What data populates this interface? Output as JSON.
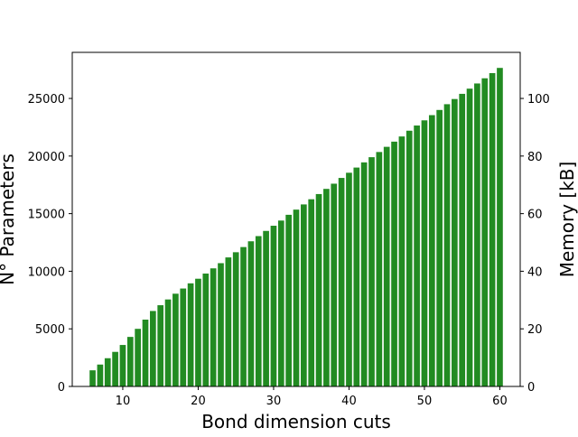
{
  "chart_data": {
    "type": "bar",
    "title": "",
    "xlabel": "Bond dimension cuts",
    "ylabel": "N° Parameters",
    "ylabel_right": "Memory [kB]",
    "bar_color": "#228b22",
    "xlim": [
      3.3,
      62.7
    ],
    "ylim": [
      0,
      29000
    ],
    "y2lim": [
      0,
      116
    ],
    "xticks": [
      10,
      20,
      30,
      40,
      50,
      60
    ],
    "yticks": [
      0,
      5000,
      10000,
      15000,
      20000,
      25000
    ],
    "y2ticks": [
      0,
      20,
      40,
      60,
      80,
      100
    ],
    "grid": false,
    "legend": "none",
    "x": [
      6,
      7,
      8,
      9,
      10,
      11,
      12,
      13,
      14,
      15,
      16,
      17,
      18,
      19,
      20,
      21,
      22,
      23,
      24,
      25,
      26,
      27,
      28,
      29,
      30,
      31,
      32,
      33,
      34,
      35,
      36,
      37,
      38,
      39,
      40,
      41,
      42,
      43,
      44,
      45,
      46,
      47,
      48,
      49,
      50,
      51,
      52,
      53,
      54,
      55,
      56,
      57,
      58,
      59,
      60
    ],
    "values": [
      1400,
      1900,
      2450,
      3000,
      3600,
      4300,
      5000,
      5800,
      6550,
      7050,
      7550,
      8050,
      8500,
      8950,
      9350,
      9800,
      10250,
      10700,
      11200,
      11650,
      12100,
      12600,
      13050,
      13500,
      13950,
      14400,
      14900,
      15350,
      15800,
      16250,
      16700,
      17150,
      17600,
      18100,
      18550,
      19000,
      19450,
      19900,
      20350,
      20800,
      21250,
      21700,
      22200,
      22650,
      23100,
      23550,
      24000,
      24500,
      24950,
      25400,
      25850,
      26300,
      26750,
      27200,
      27650
    ]
  }
}
